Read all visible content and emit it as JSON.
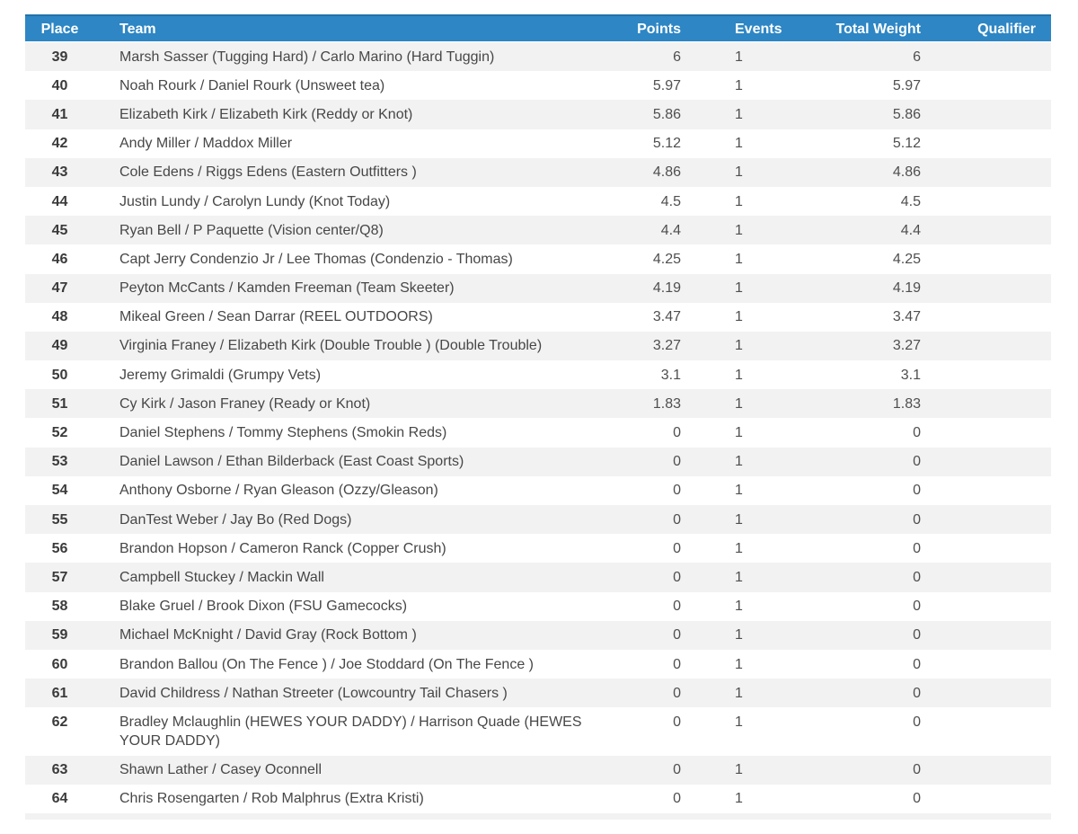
{
  "colors": {
    "header_bg": "#2e86c4",
    "header_top_border": "#2272a9",
    "header_text": "#ffffff",
    "stripe_row_bg": "#f2f2f2",
    "body_text": "#474747"
  },
  "table": {
    "columns": [
      {
        "key": "place",
        "label": "Place"
      },
      {
        "key": "team",
        "label": "Team"
      },
      {
        "key": "points",
        "label": "Points"
      },
      {
        "key": "events",
        "label": "Events"
      },
      {
        "key": "total_weight",
        "label": "Total Weight"
      },
      {
        "key": "qualifier",
        "label": "Qualifier"
      }
    ],
    "rows": [
      {
        "place": "39",
        "team": "Marsh Sasser (Tugging Hard) / Carlo Marino (Hard Tuggin)",
        "points": "6",
        "events": "1",
        "total_weight": "6",
        "qualifier": ""
      },
      {
        "place": "40",
        "team": "Noah Rourk / Daniel Rourk (Unsweet tea)",
        "points": "5.97",
        "events": "1",
        "total_weight": "5.97",
        "qualifier": ""
      },
      {
        "place": "41",
        "team": "Elizabeth Kirk / Elizabeth Kirk (Reddy or Knot)",
        "points": "5.86",
        "events": "1",
        "total_weight": "5.86",
        "qualifier": ""
      },
      {
        "place": "42",
        "team": "Andy Miller / Maddox Miller",
        "points": "5.12",
        "events": "1",
        "total_weight": "5.12",
        "qualifier": ""
      },
      {
        "place": "43",
        "team": "Cole Edens / Riggs Edens (Eastern Outfitters )",
        "points": "4.86",
        "events": "1",
        "total_weight": "4.86",
        "qualifier": ""
      },
      {
        "place": "44",
        "team": "Justin Lundy / Carolyn Lundy (Knot Today)",
        "points": "4.5",
        "events": "1",
        "total_weight": "4.5",
        "qualifier": ""
      },
      {
        "place": "45",
        "team": "Ryan Bell / P Paquette (Vision center/Q8)",
        "points": "4.4",
        "events": "1",
        "total_weight": "4.4",
        "qualifier": ""
      },
      {
        "place": "46",
        "team": "Capt Jerry Condenzio Jr / Lee Thomas (Condenzio - Thomas)",
        "points": "4.25",
        "events": "1",
        "total_weight": "4.25",
        "qualifier": ""
      },
      {
        "place": "47",
        "team": "Peyton McCants / Kamden Freeman (Team Skeeter)",
        "points": "4.19",
        "events": "1",
        "total_weight": "4.19",
        "qualifier": ""
      },
      {
        "place": "48",
        "team": "Mikeal Green / Sean Darrar (REEL OUTDOORS)",
        "points": "3.47",
        "events": "1",
        "total_weight": "3.47",
        "qualifier": ""
      },
      {
        "place": "49",
        "team": "Virginia Franey / Elizabeth Kirk (Double Trouble ) (Double Trouble)",
        "points": "3.27",
        "events": "1",
        "total_weight": "3.27",
        "qualifier": ""
      },
      {
        "place": "50",
        "team": "Jeremy Grimaldi (Grumpy Vets)",
        "points": "3.1",
        "events": "1",
        "total_weight": "3.1",
        "qualifier": ""
      },
      {
        "place": "51",
        "team": "Cy Kirk / Jason Franey (Ready or Knot)",
        "points": "1.83",
        "events": "1",
        "total_weight": "1.83",
        "qualifier": ""
      },
      {
        "place": "52",
        "team": "Daniel Stephens / Tommy Stephens (Smokin Reds)",
        "points": "0",
        "events": "1",
        "total_weight": "0",
        "qualifier": ""
      },
      {
        "place": "53",
        "team": "Daniel Lawson / Ethan Bilderback (East Coast Sports)",
        "points": "0",
        "events": "1",
        "total_weight": "0",
        "qualifier": ""
      },
      {
        "place": "54",
        "team": "Anthony Osborne / Ryan Gleason (Ozzy/Gleason)",
        "points": "0",
        "events": "1",
        "total_weight": "0",
        "qualifier": ""
      },
      {
        "place": "55",
        "team": "DanTest Weber / Jay Bo (Red Dogs)",
        "points": "0",
        "events": "1",
        "total_weight": "0",
        "qualifier": ""
      },
      {
        "place": "56",
        "team": "Brandon Hopson / Cameron Ranck (Copper Crush)",
        "points": "0",
        "events": "1",
        "total_weight": "0",
        "qualifier": ""
      },
      {
        "place": "57",
        "team": "Campbell Stuckey / Mackin Wall",
        "points": "0",
        "events": "1",
        "total_weight": "0",
        "qualifier": ""
      },
      {
        "place": "58",
        "team": "Blake Gruel / Brook Dixon (FSU Gamecocks)",
        "points": "0",
        "events": "1",
        "total_weight": "0",
        "qualifier": ""
      },
      {
        "place": "59",
        "team": "Michael McKnight / David Gray (Rock Bottom )",
        "points": "0",
        "events": "1",
        "total_weight": "0",
        "qualifier": ""
      },
      {
        "place": "60",
        "team": "Brandon Ballou (On The Fence ) / Joe Stoddard (On The Fence )",
        "points": "0",
        "events": "1",
        "total_weight": "0",
        "qualifier": ""
      },
      {
        "place": "61",
        "team": "David Childress / Nathan Streeter (Lowcountry Tail Chasers )",
        "points": "0",
        "events": "1",
        "total_weight": "0",
        "qualifier": ""
      },
      {
        "place": "62",
        "team": "Bradley Mclaughlin (HEWES YOUR DADDY) / Harrison Quade (HEWES YOUR DADDY)",
        "points": "0",
        "events": "1",
        "total_weight": "0",
        "qualifier": ""
      },
      {
        "place": "63",
        "team": "Shawn Lather / Casey Oconnell",
        "points": "0",
        "events": "1",
        "total_weight": "0",
        "qualifier": ""
      },
      {
        "place": "64",
        "team": "Chris Rosengarten / Rob Malphrus (Extra Kristi)",
        "points": "0",
        "events": "1",
        "total_weight": "0",
        "qualifier": ""
      }
    ]
  }
}
